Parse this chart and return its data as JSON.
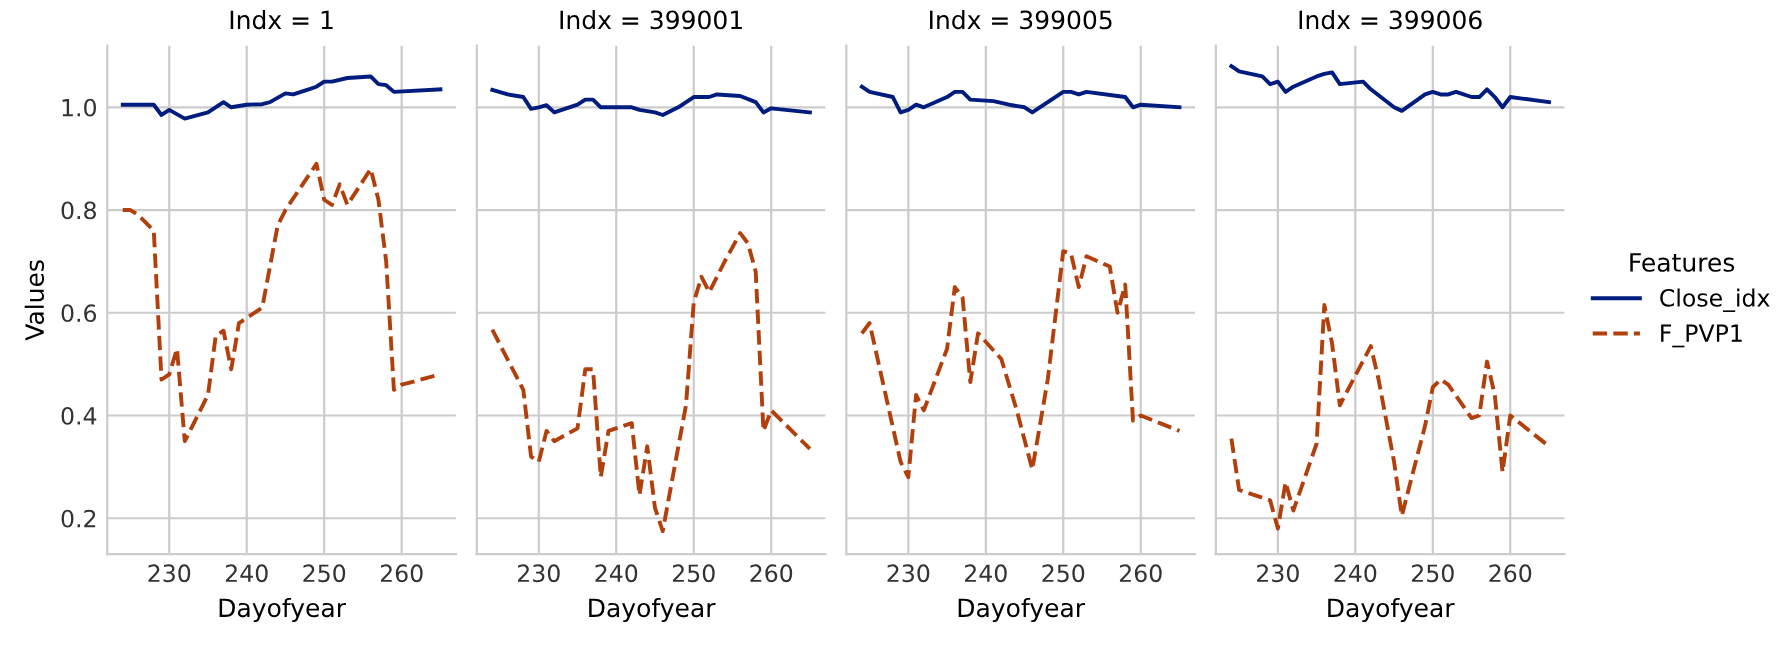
{
  "chart_data": [
    {
      "type": "line",
      "title": "Indx = 1",
      "xlabel": "Dayofyear",
      "ylabel": "Values",
      "xlim": [
        222,
        267
      ],
      "ylim": [
        0.13,
        1.12
      ],
      "xticks": [
        230,
        240,
        250,
        260
      ],
      "yticks": [
        0.2,
        0.4,
        0.6,
        0.8,
        {
          "value": 1,
          "label": "1.0"
        }
      ],
      "grid": true,
      "legend": "right",
      "legend_title": "Features",
      "series": [
        {
          "name": "Close_idx",
          "color": "#001c7f",
          "line_style": "solid",
          "x": [
            224,
            228,
            229,
            230,
            232,
            235,
            237,
            238,
            240,
            242,
            243,
            245,
            246,
            248,
            249,
            250,
            251,
            253,
            256,
            257,
            258,
            259,
            265
          ],
          "values": [
            1.005,
            1.005,
            0.985,
            0.995,
            0.978,
            0.99,
            1.01,
            1.0,
            1.005,
            1.006,
            1.01,
            1.027,
            1.025,
            1.035,
            1.04,
            1.05,
            1.05,
            1.057,
            1.06,
            1.045,
            1.043,
            1.03,
            1.035
          ]
        },
        {
          "name": "F_PVP1",
          "color": "#b1400d",
          "line_style": "dashed",
          "x": [
            224,
            225,
            226,
            228,
            229,
            230,
            231,
            232,
            235,
            236,
            237,
            238,
            239,
            240,
            242,
            244,
            245,
            249,
            250,
            251,
            252,
            253,
            256,
            257,
            258,
            259,
            260,
            265
          ],
          "values": [
            0.8,
            0.8,
            0.79,
            0.76,
            0.47,
            0.48,
            0.53,
            0.35,
            0.44,
            0.555,
            0.565,
            0.49,
            0.58,
            0.59,
            0.61,
            0.77,
            0.8,
            0.89,
            0.82,
            0.81,
            0.85,
            0.81,
            0.88,
            0.82,
            0.7,
            0.45,
            0.46,
            0.48
          ]
        }
      ]
    },
    {
      "type": "line",
      "title": "Indx = 399001",
      "xlabel": "Dayofyear",
      "xlim": [
        222,
        267
      ],
      "ylim": [
        0.13,
        1.12
      ],
      "xticks": [
        230,
        240,
        250,
        260
      ],
      "yticks": [
        0.2,
        0.4,
        0.6,
        0.8,
        1.0
      ],
      "grid": true,
      "tick_labels": "x",
      "series": [
        {
          "name": "Close_idx",
          "color": "#001c7f",
          "line_style": "solid",
          "x": [
            224,
            226,
            228,
            229,
            230,
            231,
            232,
            235,
            236,
            237,
            238,
            242,
            243,
            245,
            246,
            248,
            250,
            252,
            253,
            256,
            258,
            259,
            260,
            265
          ],
          "values": [
            1.034,
            1.025,
            1.02,
            0.997,
            1.0,
            1.004,
            0.99,
            1.005,
            1.015,
            1.015,
            1.0,
            1.0,
            0.995,
            0.99,
            0.985,
            1.0,
            1.02,
            1.02,
            1.025,
            1.022,
            1.01,
            0.99,
            0.998,
            0.99
          ]
        },
        {
          "name": "F_PVP1",
          "color": "#b1400d",
          "line_style": "dashed",
          "x": [
            224,
            228,
            229,
            230,
            231,
            232,
            235,
            236,
            237,
            238,
            239,
            242,
            243,
            244,
            245,
            246,
            249,
            250,
            251,
            252,
            254,
            256,
            257,
            258,
            259,
            260,
            265
          ],
          "values": [
            0.567,
            0.45,
            0.32,
            0.31,
            0.37,
            0.35,
            0.375,
            0.49,
            0.49,
            0.28,
            0.37,
            0.385,
            0.245,
            0.34,
            0.22,
            0.175,
            0.42,
            0.62,
            0.67,
            0.64,
            0.7,
            0.755,
            0.735,
            0.68,
            0.37,
            0.41,
            0.335
          ]
        }
      ]
    },
    {
      "type": "line",
      "title": "Indx = 399005",
      "xlabel": "Dayofyear",
      "xlim": [
        222,
        267
      ],
      "ylim": [
        0.13,
        1.12
      ],
      "xticks": [
        230,
        240,
        250,
        260
      ],
      "yticks": [
        0.2,
        0.4,
        0.6,
        0.8,
        1.0
      ],
      "grid": true,
      "tick_labels": "x",
      "series": [
        {
          "name": "Close_idx",
          "color": "#001c7f",
          "line_style": "solid",
          "x": [
            224,
            225,
            228,
            229,
            230,
            231,
            232,
            235,
            236,
            237,
            238,
            241,
            243,
            245,
            246,
            248,
            250,
            251,
            252,
            253,
            257,
            258,
            259,
            260,
            265
          ],
          "values": [
            1.04,
            1.03,
            1.02,
            0.99,
            0.995,
            1.005,
            1.0,
            1.02,
            1.03,
            1.03,
            1.015,
            1.012,
            1.005,
            1.0,
            0.99,
            1.01,
            1.03,
            1.03,
            1.025,
            1.03,
            1.022,
            1.02,
            1.0,
            1.005,
            1.0
          ]
        },
        {
          "name": "F_PVP1",
          "color": "#b1400d",
          "line_style": "dashed",
          "x": [
            224,
            225,
            229,
            230,
            231,
            232,
            235,
            236,
            237,
            238,
            239,
            242,
            244,
            246,
            248,
            250,
            251,
            252,
            253,
            256,
            257,
            258,
            259,
            260,
            265
          ],
          "values": [
            0.56,
            0.58,
            0.31,
            0.28,
            0.44,
            0.41,
            0.53,
            0.65,
            0.63,
            0.465,
            0.56,
            0.51,
            0.41,
            0.295,
            0.47,
            0.72,
            0.715,
            0.65,
            0.71,
            0.69,
            0.6,
            0.655,
            0.39,
            0.4,
            0.37
          ]
        }
      ]
    },
    {
      "type": "line",
      "title": "Indx = 399006",
      "xlabel": "Dayofyear",
      "xlim": [
        222,
        267
      ],
      "ylim": [
        0.13,
        1.12
      ],
      "xticks": [
        230,
        240,
        250,
        260
      ],
      "yticks": [
        0.2,
        0.4,
        0.6,
        0.8,
        1.0
      ],
      "grid": true,
      "tick_labels": "x",
      "series": [
        {
          "name": "Close_idx",
          "color": "#001c7f",
          "line_style": "solid",
          "x": [
            224,
            225,
            228,
            229,
            230,
            231,
            232,
            235,
            236,
            237,
            238,
            241,
            242,
            245,
            246,
            249,
            250,
            251,
            252,
            253,
            255,
            256,
            257,
            258,
            259,
            260,
            265
          ],
          "values": [
            1.08,
            1.07,
            1.06,
            1.045,
            1.05,
            1.03,
            1.04,
            1.06,
            1.065,
            1.068,
            1.045,
            1.05,
            1.035,
            1.0,
            0.993,
            1.025,
            1.03,
            1.025,
            1.025,
            1.03,
            1.02,
            1.02,
            1.035,
            1.02,
            1.0,
            1.02,
            1.01
          ]
        },
        {
          "name": "F_PVP1",
          "color": "#b1400d",
          "line_style": "dashed",
          "x": [
            224,
            225,
            229,
            230,
            231,
            232,
            235,
            236,
            237,
            238,
            242,
            243,
            245,
            246,
            249,
            250,
            251,
            252,
            255,
            256,
            257,
            258,
            259,
            260,
            265
          ],
          "values": [
            0.355,
            0.255,
            0.235,
            0.18,
            0.27,
            0.215,
            0.345,
            0.615,
            0.54,
            0.42,
            0.535,
            0.47,
            0.31,
            0.205,
            0.38,
            0.455,
            0.47,
            0.46,
            0.395,
            0.4,
            0.505,
            0.44,
            0.29,
            0.4,
            0.34
          ]
        }
      ]
    }
  ]
}
